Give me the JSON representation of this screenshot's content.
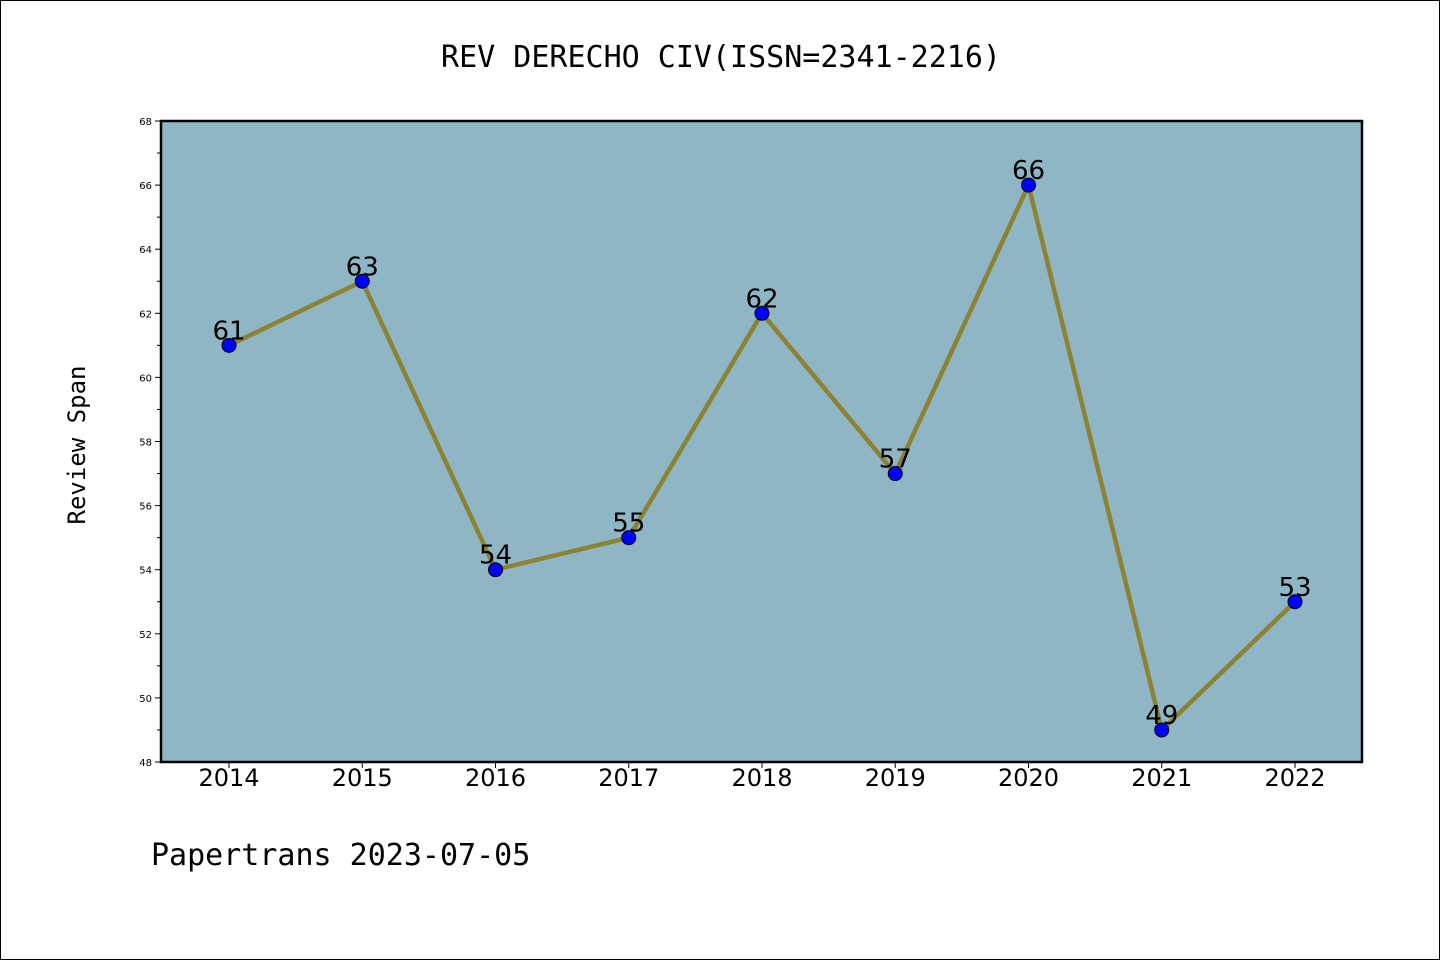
{
  "footer": "Papertrans 2023-07-05",
  "chart_data": {
    "type": "line",
    "title": "REV DERECHO CIV(ISSN=2341-2216)",
    "xlabel": "",
    "ylabel": "Review Span",
    "categories": [
      "2014",
      "2015",
      "2016",
      "2017",
      "2018",
      "2019",
      "2020",
      "2021",
      "2022"
    ],
    "series": [
      {
        "values": [
          61,
          63,
          54,
          55,
          62,
          57,
          66,
          49,
          53
        ]
      }
    ],
    "data_labels": [
      "61",
      "63",
      "54",
      "55",
      "62",
      "57",
      "66",
      "49",
      "53"
    ],
    "ylim": [
      48,
      68
    ],
    "yticks": [
      "48",
      "50",
      "52",
      "54",
      "56",
      "58",
      "60",
      "62",
      "64",
      "66",
      "68"
    ],
    "grid": false,
    "legend": "none",
    "colors": {
      "plot_background": "#8fb6c4",
      "line": "#8c8234",
      "marker": "#0000ff"
    }
  }
}
